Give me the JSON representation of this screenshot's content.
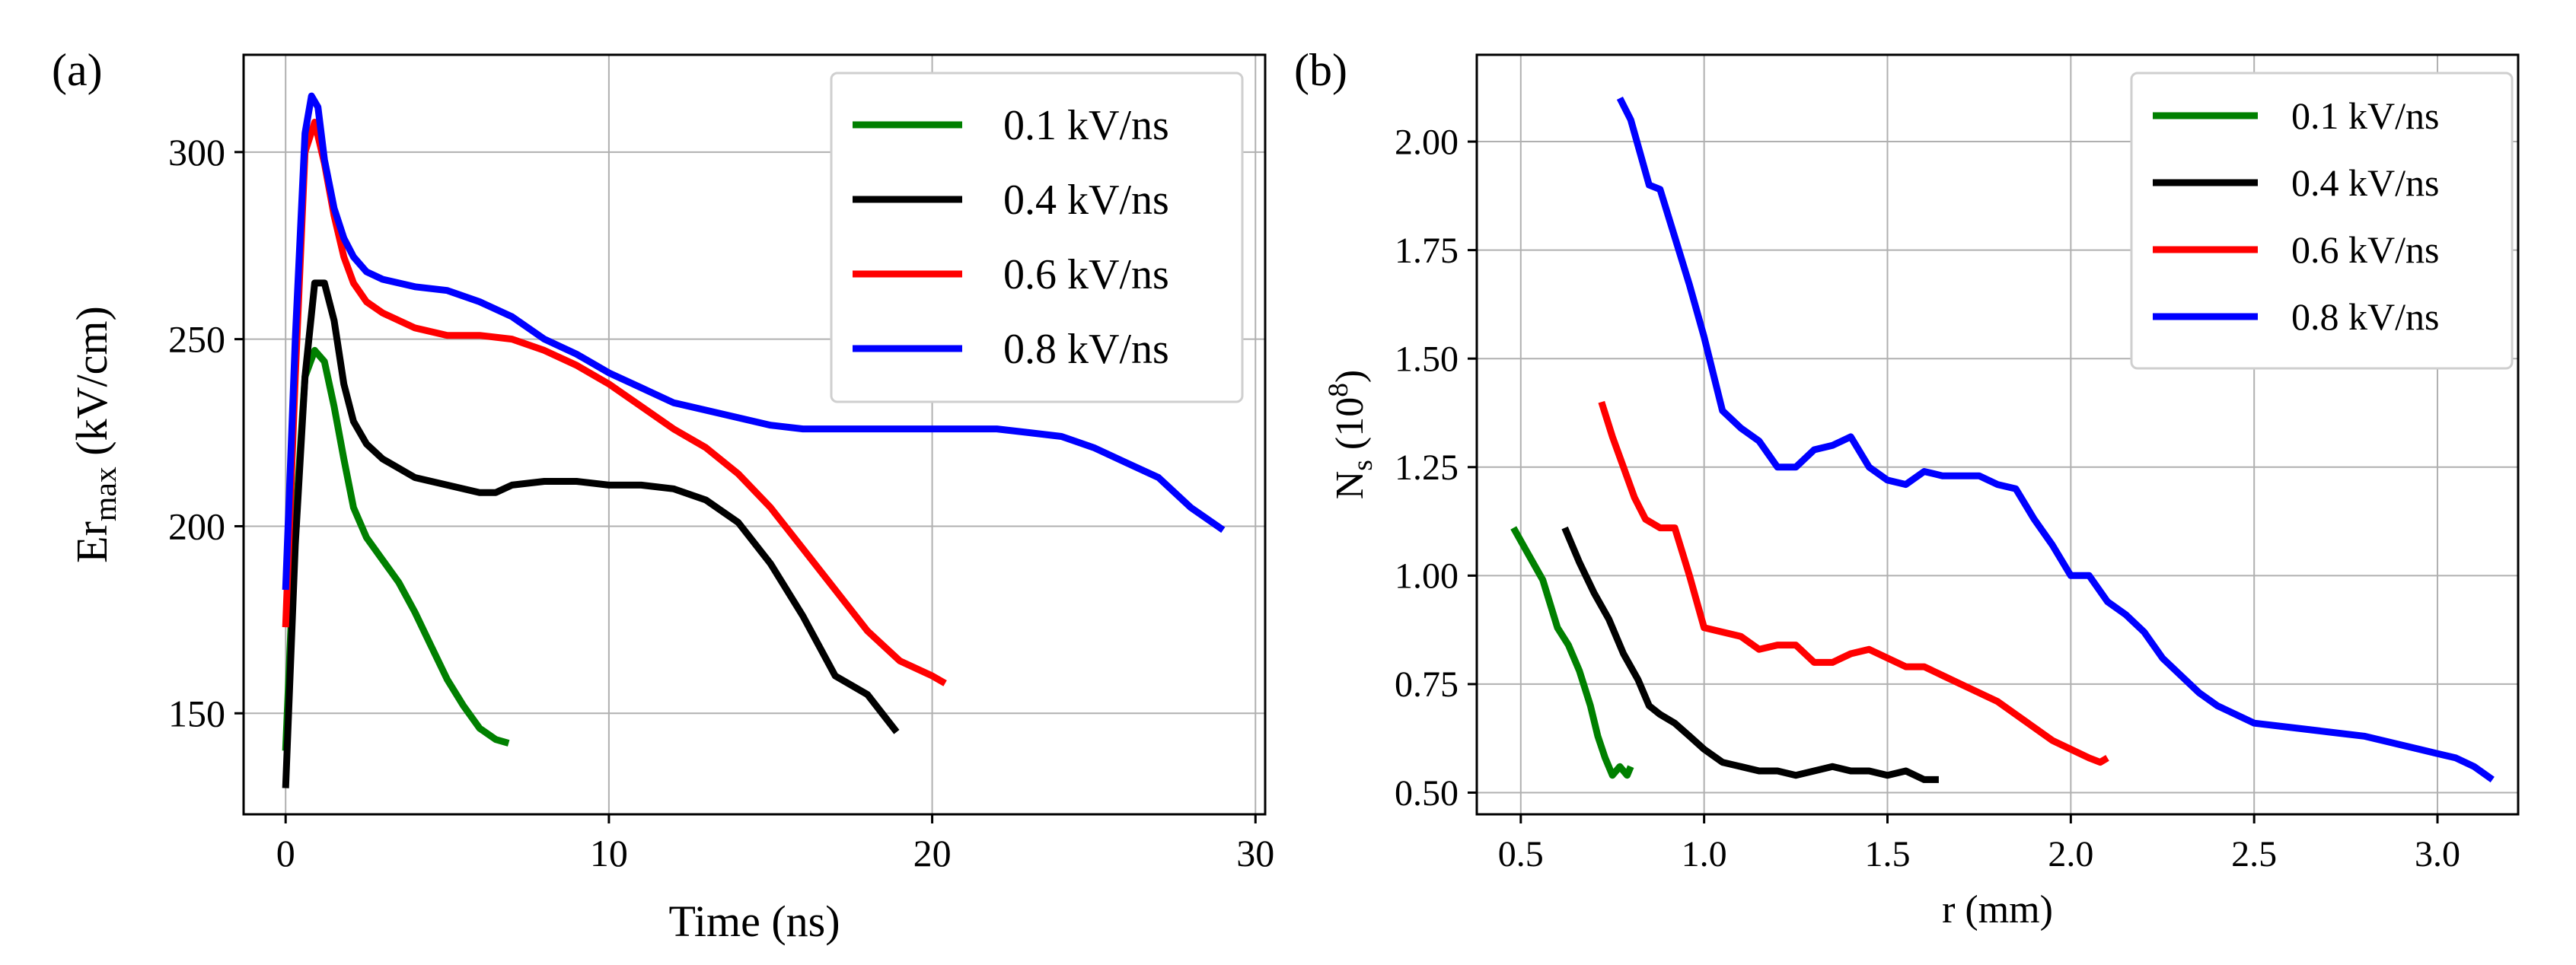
{
  "chart_data": [
    {
      "panel": "(a)",
      "type": "line",
      "title": "",
      "xlabel": "Time (ns)",
      "ylabel": {
        "base": "Er",
        "sub": "max",
        "rest": " (kV/cm)"
      },
      "xlim": [
        -1.3,
        30.3
      ],
      "ylim": [
        123,
        326
      ],
      "xticks": [
        0,
        10,
        20,
        30
      ],
      "yticks": [
        150,
        200,
        250,
        300
      ],
      "xtick_labels": [
        "0",
        "10",
        "20",
        "30"
      ],
      "ytick_labels": [
        "150",
        "200",
        "250",
        "300"
      ],
      "grid": true,
      "legend_position": "upper right",
      "series": [
        {
          "name": "0.1 kV/ns",
          "color": "#008000",
          "x": [
            0,
            0.3,
            0.6,
            0.9,
            1.2,
            1.5,
            1.8,
            2.1,
            2.5,
            3,
            3.5,
            4,
            4.5,
            5,
            5.5,
            6,
            6.5,
            6.9
          ],
          "y": [
            140,
            200,
            240,
            247,
            244,
            232,
            218,
            205,
            197,
            191,
            185,
            177,
            168,
            159,
            152,
            146,
            143,
            142
          ]
        },
        {
          "name": "0.4 kV/ns",
          "color": "#000000",
          "x": [
            0,
            0.3,
            0.6,
            0.9,
            1.2,
            1.5,
            1.8,
            2.1,
            2.5,
            3,
            4,
            5,
            6,
            6.5,
            7,
            8,
            9,
            10,
            11,
            12,
            13,
            14,
            15,
            16,
            17,
            18,
            18.9
          ],
          "y": [
            130,
            195,
            240,
            265,
            265,
            255,
            238,
            228,
            222,
            218,
            213,
            211,
            209,
            209,
            211,
            212,
            212,
            211,
            211,
            210,
            207,
            201,
            190,
            176,
            160,
            155,
            145
          ]
        },
        {
          "name": "0.6 kV/ns",
          "color": "#ff0000",
          "x": [
            0,
            0.3,
            0.6,
            0.9,
            1.2,
            1.5,
            1.8,
            2.1,
            2.5,
            3,
            4,
            5,
            6,
            7,
            8,
            9,
            10,
            11,
            12,
            13,
            14,
            15,
            16,
            17,
            18,
            19,
            20,
            20.4
          ],
          "y": [
            173,
            240,
            300,
            308,
            297,
            283,
            272,
            265,
            260,
            257,
            253,
            251,
            251,
            250,
            247,
            243,
            238,
            232,
            226,
            221,
            214,
            205,
            194,
            183,
            172,
            164,
            160,
            158
          ]
        },
        {
          "name": "0.8 kV/ns",
          "color": "#0000ff",
          "x": [
            0,
            0.3,
            0.6,
            0.8,
            1.0,
            1.2,
            1.5,
            1.8,
            2.1,
            2.5,
            3,
            4,
            5,
            6,
            7,
            8,
            9,
            10,
            11,
            12,
            13,
            14,
            15,
            16,
            17,
            18,
            19,
            20,
            21,
            22,
            23,
            24,
            25,
            26,
            27,
            28,
            29
          ],
          "y": [
            183,
            250,
            305,
            315,
            312,
            298,
            285,
            277,
            272,
            268,
            266,
            264,
            263,
            260,
            256,
            250,
            246,
            241,
            237,
            233,
            231,
            229,
            227,
            226,
            226,
            226,
            226,
            226,
            226,
            226,
            225,
            224,
            221,
            217,
            213,
            205,
            199
          ]
        }
      ]
    },
    {
      "panel": "(b)",
      "type": "line",
      "title": "",
      "xlabel": "r (mm)",
      "ylabel": {
        "base": "N",
        "sub": "s",
        "rest": " (10",
        "sup": "8",
        "close": ")"
      },
      "xlim": [
        0.38,
        3.22
      ],
      "ylim": [
        0.45,
        2.2
      ],
      "xticks": [
        0.5,
        1.0,
        1.5,
        2.0,
        2.5,
        3.0
      ],
      "yticks": [
        0.5,
        0.75,
        1.0,
        1.25,
        1.5,
        1.75,
        2.0
      ],
      "xtick_labels": [
        "0.5",
        "1.0",
        "1.5",
        "2.0",
        "2.5",
        "3.0"
      ],
      "ytick_labels": [
        "0.50",
        "0.75",
        "1.00",
        "1.25",
        "1.50",
        "1.75",
        "2.00"
      ],
      "grid": true,
      "legend_position": "upper right",
      "series": [
        {
          "name": "0.1 kV/ns",
          "color": "#008000",
          "x": [
            0.48,
            0.52,
            0.56,
            0.6,
            0.63,
            0.66,
            0.69,
            0.71,
            0.73,
            0.75,
            0.77,
            0.79,
            0.8
          ],
          "y": [
            1.11,
            1.05,
            0.99,
            0.88,
            0.84,
            0.78,
            0.7,
            0.63,
            0.58,
            0.54,
            0.56,
            0.54,
            0.56
          ]
        },
        {
          "name": "0.4 kV/ns",
          "color": "#000000",
          "x": [
            0.62,
            0.66,
            0.7,
            0.74,
            0.78,
            0.82,
            0.85,
            0.88,
            0.92,
            0.96,
            1.0,
            1.05,
            1.1,
            1.15,
            1.2,
            1.25,
            1.3,
            1.35,
            1.4,
            1.45,
            1.5,
            1.55,
            1.6,
            1.64
          ],
          "y": [
            1.11,
            1.03,
            0.96,
            0.9,
            0.82,
            0.76,
            0.7,
            0.68,
            0.66,
            0.63,
            0.6,
            0.57,
            0.56,
            0.55,
            0.55,
            0.54,
            0.55,
            0.56,
            0.55,
            0.55,
            0.54,
            0.55,
            0.53,
            0.53
          ]
        },
        {
          "name": "0.6 kV/ns",
          "color": "#ff0000",
          "x": [
            0.72,
            0.75,
            0.78,
            0.81,
            0.84,
            0.88,
            0.92,
            0.96,
            1.0,
            1.05,
            1.1,
            1.15,
            1.2,
            1.25,
            1.3,
            1.35,
            1.4,
            1.45,
            1.5,
            1.55,
            1.6,
            1.65,
            1.7,
            1.75,
            1.8,
            1.85,
            1.9,
            1.95,
            2.0,
            2.05,
            2.08,
            2.1
          ],
          "y": [
            1.4,
            1.32,
            1.25,
            1.18,
            1.13,
            1.11,
            1.11,
            1.0,
            0.88,
            0.87,
            0.86,
            0.83,
            0.84,
            0.84,
            0.8,
            0.8,
            0.82,
            0.83,
            0.81,
            0.79,
            0.79,
            0.77,
            0.75,
            0.73,
            0.71,
            0.68,
            0.65,
            0.62,
            0.6,
            0.58,
            0.57,
            0.58
          ]
        },
        {
          "name": "0.8 kV/ns",
          "color": "#0000ff",
          "x": [
            0.77,
            0.8,
            0.85,
            0.88,
            0.92,
            0.96,
            1.0,
            1.05,
            1.1,
            1.15,
            1.2,
            1.25,
            1.3,
            1.35,
            1.4,
            1.45,
            1.5,
            1.55,
            1.6,
            1.65,
            1.7,
            1.75,
            1.8,
            1.85,
            1.9,
            1.95,
            2.0,
            2.05,
            2.1,
            2.15,
            2.2,
            2.25,
            2.3,
            2.35,
            2.4,
            2.45,
            2.5,
            2.6,
            2.7,
            2.8,
            2.9,
            3.0,
            3.05,
            3.1,
            3.15
          ],
          "y": [
            2.1,
            2.05,
            1.9,
            1.89,
            1.78,
            1.67,
            1.55,
            1.38,
            1.34,
            1.31,
            1.25,
            1.25,
            1.29,
            1.3,
            1.32,
            1.25,
            1.22,
            1.21,
            1.24,
            1.23,
            1.23,
            1.23,
            1.21,
            1.2,
            1.13,
            1.07,
            1.0,
            1.0,
            0.94,
            0.91,
            0.87,
            0.81,
            0.77,
            0.73,
            0.7,
            0.68,
            0.66,
            0.65,
            0.64,
            0.63,
            0.61,
            0.59,
            0.58,
            0.56,
            0.53
          ]
        }
      ]
    }
  ]
}
